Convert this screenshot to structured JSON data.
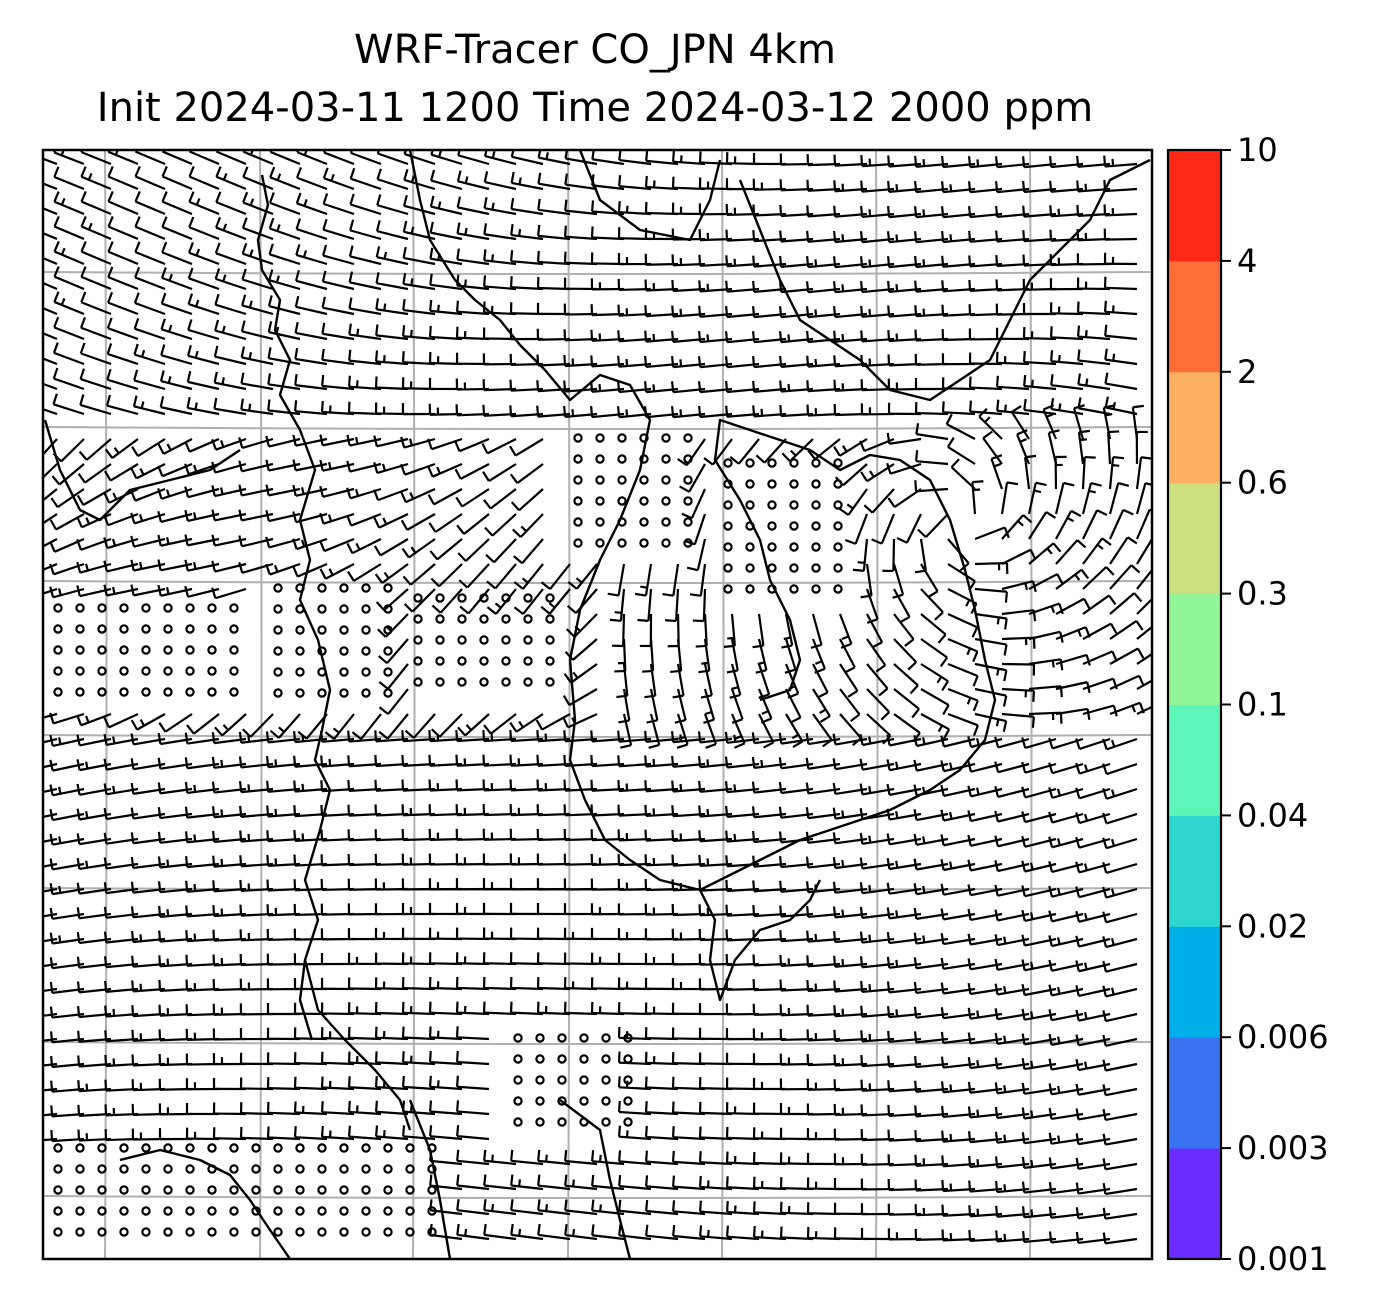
{
  "title": {
    "line1": "WRF-Tracer CO_JPN 4km",
    "line2": "Init 2024-03-11 1200 Time 2024-03-12 2000 ppm"
  },
  "colorbar": {
    "levels": [
      "0.001",
      "0.003",
      "0.006",
      "0.02",
      "0.04",
      "0.1",
      "0.3",
      "0.6",
      "2",
      "4",
      "10"
    ],
    "colors": [
      "#6a2cff",
      "#3a72f2",
      "#00aee8",
      "#2ed8d0",
      "#5ef5b9",
      "#93f59a",
      "#cde07f",
      "#fdb062",
      "#ff6e38",
      "#ff2917"
    ]
  },
  "map": {
    "frame_color": "#000000",
    "gridline_color": "#b0b0b0",
    "wind_barb_color": "#000000",
    "coastline_color": "#000000",
    "symbols": [
      "wind-barb",
      "calm-circle"
    ]
  }
}
